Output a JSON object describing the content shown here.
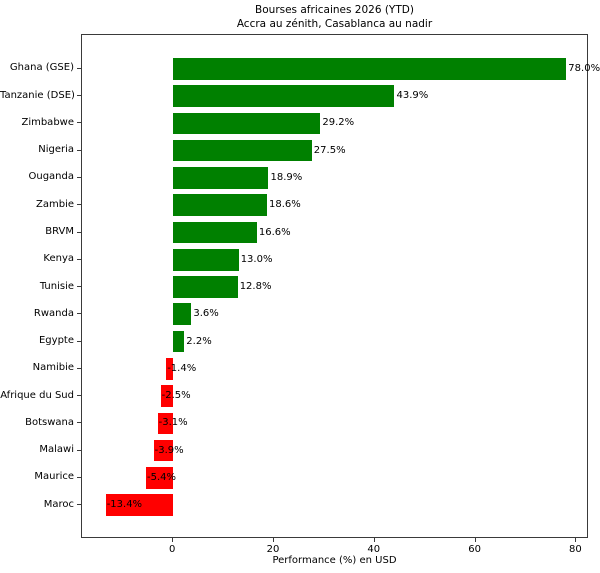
{
  "chart": {
    "title": "Bourses africaines 2026 (YTD)",
    "subtitle": "Accra au zénith, Casablanca au nadir",
    "xlabel": "Performance (%) en USD"
  },
  "chart_data": {
    "type": "bar",
    "orientation": "horizontal",
    "title": "Bourses africaines 2026 (YTD)",
    "subtitle": "Accra au zénith, Casablanca au nadir",
    "xlabel": "Performance (%) en USD",
    "ylabel": "",
    "categories": [
      "Ghana (GSE)",
      "Tanzanie (DSE)",
      "Zimbabwe",
      "Nigeria",
      "Ouganda",
      "Zambie",
      "BRVM",
      "Kenya",
      "Tunisie",
      "Rwanda",
      "Egypte",
      "Namibie",
      "Afrique du Sud",
      "Botswana",
      "Malawi",
      "Maurice",
      "Maroc"
    ],
    "values": [
      78.0,
      43.9,
      29.2,
      27.5,
      18.9,
      18.6,
      16.6,
      13.0,
      12.8,
      3.6,
      2.2,
      -1.4,
      -2.5,
      -3.1,
      -3.9,
      -5.4,
      -13.4
    ],
    "value_labels": [
      "78.0%",
      "43.9%",
      "29.2%",
      "27.5%",
      "18.9%",
      "18.6%",
      "16.6%",
      "13.0%",
      "12.8%",
      "3.6%",
      "2.2%",
      "-1.4%",
      "-2.5%",
      "-3.1%",
      "-3.9%",
      "-5.4%",
      "-13.4%"
    ],
    "xticks": [
      0,
      20,
      40,
      60,
      80
    ],
    "xtick_labels": [
      "0",
      "20",
      "40",
      "60",
      "80"
    ],
    "xlim": [
      -18.1,
      82.5
    ],
    "positive_color": "#008000",
    "negative_color": "#ff0000",
    "grid": false,
    "legend": false
  }
}
